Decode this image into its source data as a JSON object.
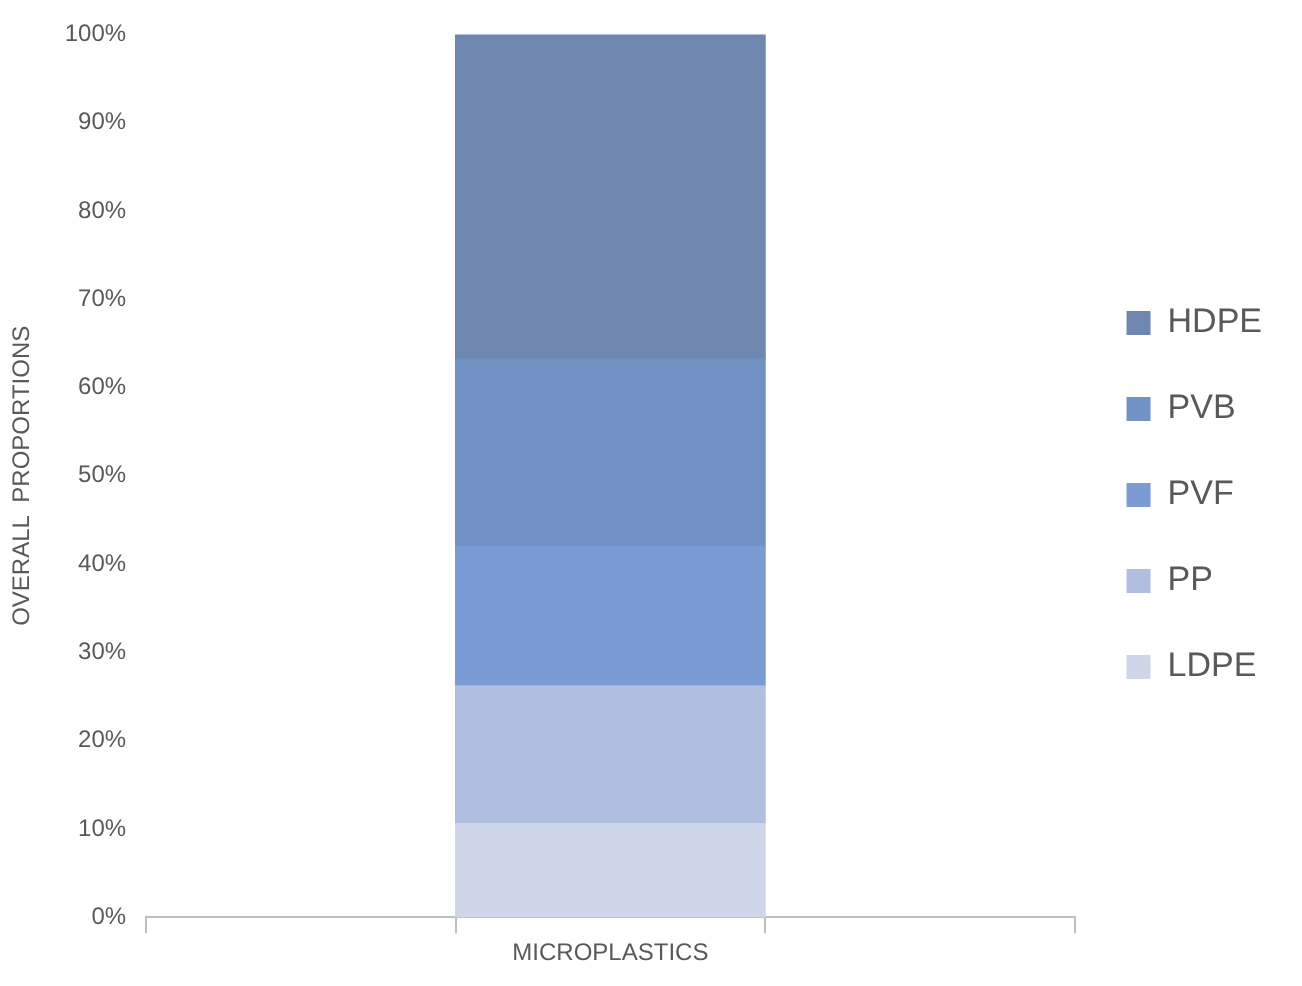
{
  "chart_data": {
    "type": "bar",
    "stacked": true,
    "ylabel": "OVERALL  PROPORTIONS",
    "categories": [
      null,
      "MICROPLASTICS",
      null
    ],
    "series": [
      {
        "name": "LDPE",
        "color": "#d0d6ea",
        "values": [
          null,
          10.6,
          null
        ]
      },
      {
        "name": "PP",
        "color": "#b0bee0",
        "values": [
          null,
          15.6,
          null
        ]
      },
      {
        "name": "PVF",
        "color": "#7b9bd4",
        "values": [
          null,
          15.8,
          null
        ]
      },
      {
        "name": "PVB",
        "color": "#7291c4",
        "values": [
          null,
          21.2,
          null
        ]
      },
      {
        "name": "HDPE",
        "color": "#6e86b0",
        "values": [
          null,
          36.8,
          null
        ]
      }
    ],
    "ylim": [
      0,
      100
    ],
    "yticks": [
      {
        "value": 0,
        "label": "0%"
      },
      {
        "value": 10,
        "label": "10%"
      },
      {
        "value": 20,
        "label": "20%"
      },
      {
        "value": 30,
        "label": "30%"
      },
      {
        "value": 40,
        "label": "40%"
      },
      {
        "value": 50,
        "label": "50%"
      },
      {
        "value": 60,
        "label": "60%"
      },
      {
        "value": 70,
        "label": "70%"
      },
      {
        "value": 80,
        "label": "80%"
      },
      {
        "value": 90,
        "label": "90%"
      },
      {
        "value": 100,
        "label": "100%"
      }
    ],
    "grid": false,
    "legend": "right"
  }
}
